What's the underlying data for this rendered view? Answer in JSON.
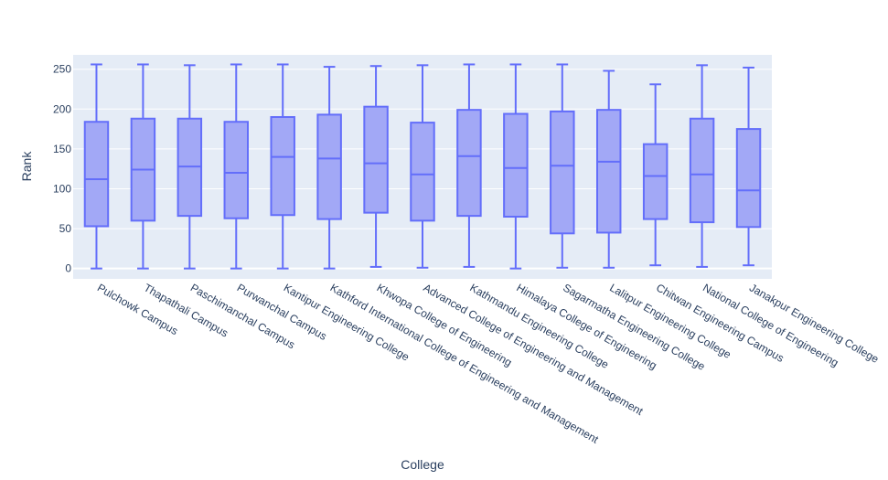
{
  "chart_data": {
    "type": "box",
    "title": "",
    "xlabel": "College",
    "ylabel": "Rank",
    "ylim": [
      -13,
      268
    ],
    "yticks": [
      0,
      50,
      100,
      150,
      200,
      250
    ],
    "grid": true,
    "legend": "none",
    "colors": {
      "box_fill": "#a2a8f6",
      "box_line": "#636efa",
      "plot_bg": "#e5ecf6",
      "grid": "#ffffff",
      "text": "#2a3f5f"
    },
    "categories": [
      "Pulchowk Campus",
      "Thapathali Campus",
      "Paschimanchal Campus",
      "Purwanchal Campus",
      "Kantipur Engineering College",
      "Kathford International College of Engineering and Management",
      "Khwopa College of Engineering",
      "Advanced College of Engineering and Management",
      "Kathmandu Engineering College",
      "Himalaya College of Engineering",
      "Sagarmatha Engineering College",
      "Lalitpur Engineering College",
      "Chitwan Engineering Campus",
      "National College of Engineering",
      "Janakpur Engineering College"
    ],
    "boxes": [
      {
        "min": 0,
        "q1": 53,
        "median": 112,
        "q3": 184,
        "max": 256
      },
      {
        "min": 0,
        "q1": 60,
        "median": 124,
        "q3": 188,
        "max": 256
      },
      {
        "min": 0,
        "q1": 66,
        "median": 128,
        "q3": 188,
        "max": 255
      },
      {
        "min": 0,
        "q1": 63,
        "median": 120,
        "q3": 184,
        "max": 256
      },
      {
        "min": 0,
        "q1": 67,
        "median": 140,
        "q3": 190,
        "max": 256
      },
      {
        "min": 0,
        "q1": 62,
        "median": 138,
        "q3": 193,
        "max": 253
      },
      {
        "min": 2,
        "q1": 70,
        "median": 132,
        "q3": 203,
        "max": 254
      },
      {
        "min": 1,
        "q1": 60,
        "median": 118,
        "q3": 183,
        "max": 255
      },
      {
        "min": 2,
        "q1": 66,
        "median": 141,
        "q3": 199,
        "max": 256
      },
      {
        "min": 0,
        "q1": 65,
        "median": 126,
        "q3": 194,
        "max": 256
      },
      {
        "min": 1,
        "q1": 44,
        "median": 129,
        "q3": 197,
        "max": 256
      },
      {
        "min": 1,
        "q1": 45,
        "median": 134,
        "q3": 199,
        "max": 248
      },
      {
        "min": 4,
        "q1": 62,
        "median": 116,
        "q3": 156,
        "max": 231
      },
      {
        "min": 2,
        "q1": 58,
        "median": 118,
        "q3": 188,
        "max": 255
      },
      {
        "min": 4,
        "q1": 52,
        "median": 98,
        "q3": 175,
        "max": 252
      }
    ]
  }
}
